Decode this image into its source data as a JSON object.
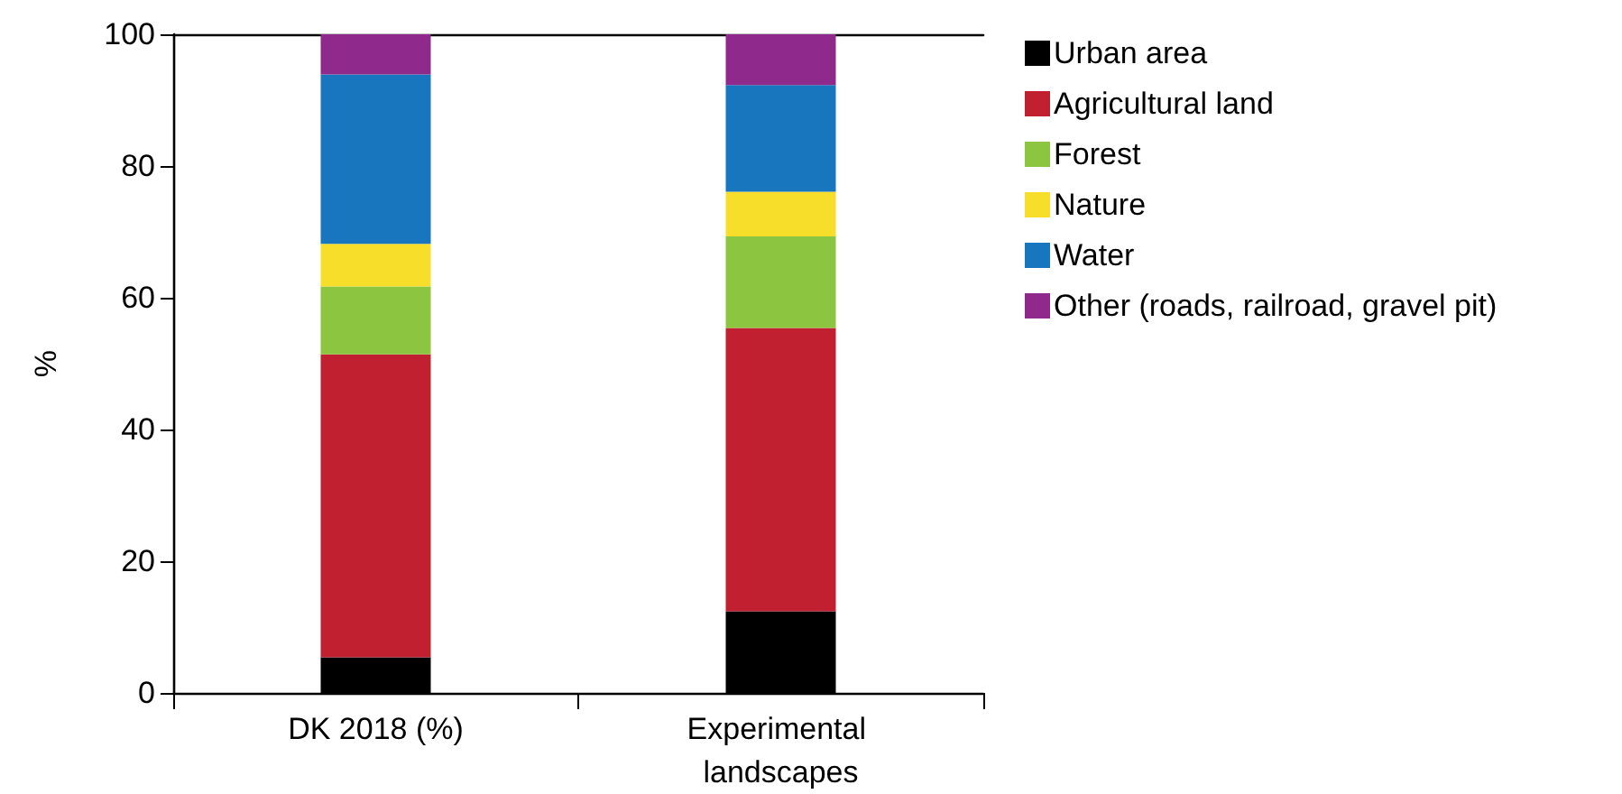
{
  "chart_data": {
    "type": "bar",
    "stacked": true,
    "categories": [
      "DK 2018 (%)",
      "Experimental landscapes"
    ],
    "ylabel": "%",
    "ylim": [
      0,
      100
    ],
    "yticks": [
      0,
      20,
      40,
      60,
      80,
      100
    ],
    "grid": false,
    "legend": "top right",
    "series": [
      {
        "name": "Urban area",
        "color": "#000000",
        "values": [
          5.4,
          12.4
        ]
      },
      {
        "name": "Agricultural land",
        "color": "#c0202f",
        "values": [
          46.0,
          43.0
        ]
      },
      {
        "name": "Forest",
        "color": "#8cc540",
        "values": [
          10.3,
          13.9
        ]
      },
      {
        "name": "Nature",
        "color": "#f7de2a",
        "values": [
          6.5,
          6.8
        ]
      },
      {
        "name": "Water",
        "color": "#1776bd",
        "values": [
          25.7,
          16.2
        ]
      },
      {
        "name": "Other (roads, railroad, gravel pit)",
        "color": "#8f298c",
        "values": [
          6.1,
          7.7
        ]
      }
    ]
  }
}
